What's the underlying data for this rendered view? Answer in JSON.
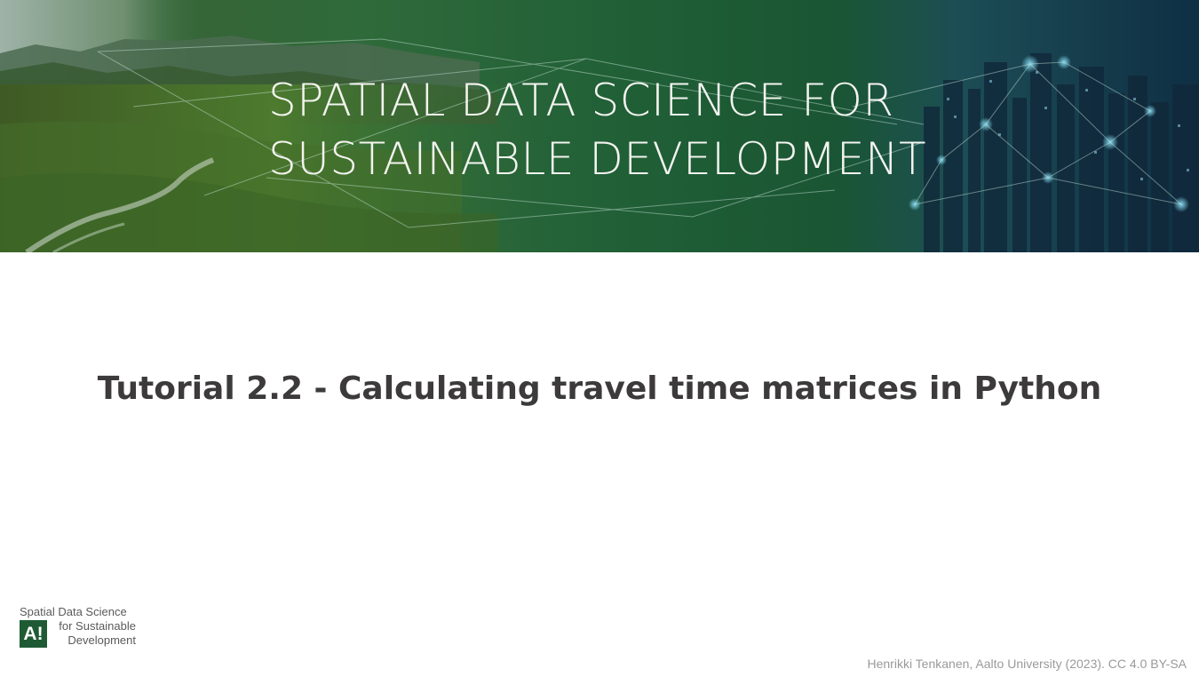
{
  "banner": {
    "title_line1": "SPATIAL DATA SCIENCE FOR",
    "title_line2": "SUSTAINABLE DEVELOPMENT"
  },
  "slide": {
    "title": "Tutorial 2.2 - Calculating travel time matrices in Python"
  },
  "logo": {
    "line1": "Spatial Data Science",
    "mark": "A!",
    "line2": "for Sustainable",
    "line3": "Development"
  },
  "footer": {
    "credit": "Henrikki Tenkanen, Aalto University (2023). CC 4.0 BY-SA"
  },
  "colors": {
    "brand_green": "#1e5b35",
    "title_text": "#3c3a3a",
    "credit_text": "#9a9a9a"
  }
}
